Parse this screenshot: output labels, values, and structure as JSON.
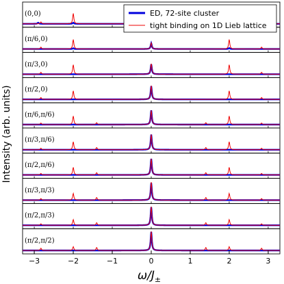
{
  "chart_data": {
    "type": "line",
    "xlabel_main": "ω/J",
    "xlabel_sub": "±",
    "ylabel": "Intensity (arb. units)",
    "xlim": [
      -3.3,
      3.3
    ],
    "xticks": [
      -3,
      -2,
      -1,
      0,
      1,
      2,
      3
    ],
    "xtick_labels": [
      "−3",
      "−2",
      "−1",
      "0",
      "1",
      "2",
      "3"
    ],
    "legend_position": "top-right",
    "series": [
      {
        "name": "ED, 72-site cluster",
        "color": "#0000dd"
      },
      {
        "name": "tight binding on 1D Lieb lattice",
        "color": "#ee0000"
      }
    ],
    "panels": [
      {
        "label": "(0,0)",
        "blue_peaks": [
          [
            -2.9,
            0.06
          ],
          [
            -2.0,
            0.06
          ],
          [
            0.0,
            0.28
          ],
          [
            2.0,
            0.06
          ],
          [
            2.85,
            0.06
          ]
        ],
        "red_peaks": [
          [
            -2.83,
            0.1
          ],
          [
            -2.0,
            0.55
          ],
          [
            0.0,
            0.14
          ],
          [
            2.0,
            0.55
          ],
          [
            2.83,
            0.1
          ]
        ]
      },
      {
        "label": "(π/6,0)",
        "blue_peaks": [
          [
            -2.0,
            0.04
          ],
          [
            0.0,
            0.3
          ],
          [
            2.0,
            0.05
          ]
        ],
        "red_peaks": [
          [
            -2.83,
            0.1
          ],
          [
            -2.0,
            0.5
          ],
          [
            0.0,
            0.32
          ],
          [
            2.0,
            0.5
          ],
          [
            2.83,
            0.1
          ]
        ]
      },
      {
        "label": "(π/3,0)",
        "blue_peaks": [
          [
            0.0,
            0.52
          ]
        ],
        "red_peaks": [
          [
            -2.83,
            0.1
          ],
          [
            -2.0,
            0.5
          ],
          [
            0.0,
            0.55
          ],
          [
            2.0,
            0.5
          ],
          [
            2.83,
            0.1
          ]
        ]
      },
      {
        "label": "(π/2,0)",
        "blue_peaks": [
          [
            0.0,
            0.7
          ]
        ],
        "red_peaks": [
          [
            -2.83,
            0.1
          ],
          [
            -2.0,
            0.45
          ],
          [
            0.0,
            0.72
          ],
          [
            2.0,
            0.45
          ],
          [
            2.83,
            0.1
          ]
        ]
      },
      {
        "label": "(π/6,π/6)",
        "blue_peaks": [
          [
            0.0,
            0.75
          ]
        ],
        "red_peaks": [
          [
            -2.83,
            0.08
          ],
          [
            -2.0,
            0.45
          ],
          [
            -1.4,
            0.1
          ],
          [
            0.0,
            0.75
          ],
          [
            1.4,
            0.1
          ],
          [
            2.0,
            0.45
          ],
          [
            2.83,
            0.08
          ]
        ]
      },
      {
        "label": "(π/3,π/6)",
        "blue_peaks": [
          [
            0.0,
            0.8
          ]
        ],
        "red_peaks": [
          [
            -2.83,
            0.08
          ],
          [
            -2.0,
            0.42
          ],
          [
            -1.4,
            0.12
          ],
          [
            0.0,
            0.8
          ],
          [
            1.4,
            0.12
          ],
          [
            2.0,
            0.42
          ],
          [
            2.83,
            0.08
          ]
        ]
      },
      {
        "label": "(π/2,π/6)",
        "blue_peaks": [
          [
            0.0,
            0.85
          ]
        ],
        "red_peaks": [
          [
            -2.83,
            0.08
          ],
          [
            -2.0,
            0.4
          ],
          [
            -1.4,
            0.12
          ],
          [
            0.0,
            0.85
          ],
          [
            1.4,
            0.12
          ],
          [
            2.0,
            0.4
          ],
          [
            2.83,
            0.08
          ]
        ]
      },
      {
        "label": "(π/3,π/3)",
        "blue_peaks": [
          [
            0.0,
            0.9
          ]
        ],
        "red_peaks": [
          [
            -2.83,
            0.08
          ],
          [
            -2.0,
            0.35
          ],
          [
            -1.4,
            0.14
          ],
          [
            0.0,
            0.95
          ],
          [
            1.4,
            0.14
          ],
          [
            2.0,
            0.35
          ],
          [
            2.83,
            0.08
          ]
        ]
      },
      {
        "label": "(π/2,π/3)",
        "blue_peaks": [
          [
            0.0,
            0.95
          ]
        ],
        "red_peaks": [
          [
            -2.83,
            0.08
          ],
          [
            -2.0,
            0.3
          ],
          [
            -1.4,
            0.14
          ],
          [
            0.0,
            0.98
          ],
          [
            1.4,
            0.14
          ],
          [
            2.0,
            0.3
          ],
          [
            2.83,
            0.08
          ]
        ]
      },
      {
        "label": "(π/2,π/2)",
        "blue_peaks": [
          [
            0.0,
            0.98
          ]
        ],
        "red_peaks": [
          [
            -2.83,
            0.12
          ],
          [
            -2.0,
            0.2
          ],
          [
            -1.4,
            0.16
          ],
          [
            0.0,
            1.0
          ],
          [
            1.4,
            0.16
          ],
          [
            2.0,
            0.2
          ],
          [
            2.83,
            0.12
          ]
        ]
      }
    ]
  }
}
